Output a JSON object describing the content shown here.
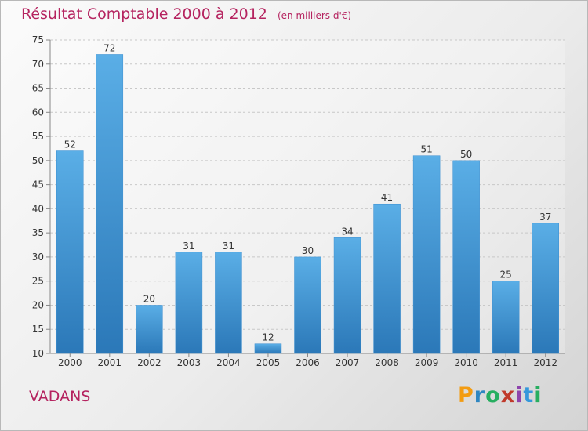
{
  "title": "Résultat Comptable 2000 à 2012",
  "subtitle": "(en milliers d'€)",
  "commune": "VADANS",
  "logo": {
    "letters": [
      "P",
      "r",
      "o",
      "x",
      "i",
      "t",
      "i"
    ],
    "colors": [
      "#f39c12",
      "#2e86c1",
      "#27ae60",
      "#c0392b",
      "#8e44ad",
      "#3498db",
      "#27ae60"
    ]
  },
  "colors": {
    "bar": "#4a9fdd",
    "bar_dark": "#2b78b8",
    "title": "#b5235f",
    "axis_text": "#333333"
  },
  "chart_data": {
    "type": "bar",
    "title": "Résultat Comptable 2000 à 2012",
    "categories": [
      "2000",
      "2001",
      "2002",
      "2003",
      "2004",
      "2005",
      "2006",
      "2007",
      "2008",
      "2009",
      "2010",
      "2011",
      "2012"
    ],
    "values": [
      52,
      72,
      20,
      31,
      31,
      12,
      30,
      34,
      41,
      51,
      50,
      25,
      37
    ],
    "ylim": [
      10,
      75
    ],
    "yticks": [
      10,
      15,
      20,
      25,
      30,
      35,
      40,
      45,
      50,
      55,
      60,
      65,
      70,
      75
    ],
    "grid": "horizontal-dashed",
    "data_labels": true
  }
}
